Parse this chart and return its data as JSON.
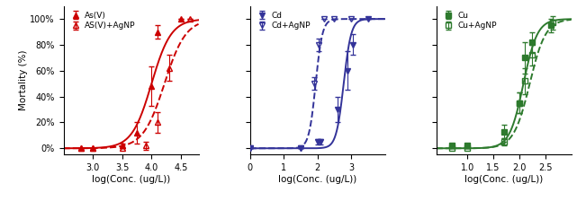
{
  "panel1": {
    "color": "#cc0000",
    "xlim": [
      2.5,
      4.8
    ],
    "xticks": [
      3.0,
      3.5,
      4.0,
      4.5
    ],
    "xlabel": "log(Conc. (ug/L))",
    "ylabel": "Mortality (%)",
    "legend1": "As(V)",
    "legend2": "AS(V)+AgNP",
    "solid_points_x": [
      2.8,
      3.0,
      3.5,
      3.75,
      4.0,
      4.1,
      4.5
    ],
    "solid_points_y": [
      0,
      0,
      2,
      12,
      48,
      90,
      100
    ],
    "solid_err": [
      0,
      0,
      2,
      8,
      15,
      5,
      0
    ],
    "dashed_points_x": [
      2.8,
      3.0,
      3.5,
      3.9,
      4.1,
      4.3,
      4.65
    ],
    "dashed_points_y": [
      0,
      0,
      0,
      2,
      20,
      62,
      100
    ],
    "dashed_err": [
      0,
      0,
      0,
      3,
      8,
      10,
      0
    ],
    "solid_lc50": 4.0,
    "solid_slope": 6.0,
    "dashed_lc50": 4.22,
    "dashed_slope": 5.5
  },
  "panel2": {
    "color": "#333399",
    "xlim": [
      0.0,
      4.0
    ],
    "xticks": [
      0,
      1,
      2,
      3
    ],
    "xlabel": "log(Conc. (ug/L))",
    "legend1": "Cd",
    "legend2": "Cd+AgNP",
    "solid_points_x": [
      0.0,
      1.5,
      2.0,
      2.1,
      2.6,
      2.9,
      3.05,
      3.5
    ],
    "solid_points_y": [
      0,
      0,
      5,
      5,
      30,
      60,
      80,
      100
    ],
    "solid_err": [
      0,
      0,
      2,
      2,
      10,
      15,
      8,
      0
    ],
    "dashed_points_x": [
      0.0,
      1.5,
      1.9,
      2.05,
      2.2,
      2.5,
      3.0
    ],
    "dashed_points_y": [
      0,
      0,
      50,
      80,
      100,
      100,
      100
    ],
    "dashed_err": [
      0,
      0,
      5,
      5,
      0,
      0,
      0
    ],
    "solid_lc50": 2.78,
    "solid_slope": 9.0,
    "dashed_lc50": 1.95,
    "dashed_slope": 10.0
  },
  "panel3": {
    "color": "#2d7a2d",
    "xlim": [
      0.4,
      3.0
    ],
    "xticks": [
      1.0,
      1.5,
      2.0,
      2.5
    ],
    "xlabel": "log(Conc. (ug/L))",
    "legend1": "Cu",
    "legend2": "Cu+AgNP",
    "solid_points_x": [
      0.7,
      1.0,
      1.7,
      2.0,
      2.1,
      2.25,
      2.6
    ],
    "solid_points_y": [
      2,
      2,
      13,
      35,
      70,
      82,
      95
    ],
    "solid_err": [
      2,
      2,
      5,
      8,
      12,
      8,
      5
    ],
    "dashed_points_x": [
      0.7,
      1.0,
      1.7,
      2.0,
      2.1,
      2.25,
      2.65
    ],
    "dashed_points_y": [
      0,
      0,
      5,
      35,
      52,
      72,
      97
    ],
    "dashed_err": [
      0,
      0,
      3,
      8,
      10,
      8,
      5
    ],
    "solid_lc50": 2.08,
    "solid_slope": 7.5,
    "dashed_lc50": 2.2,
    "dashed_slope": 6.5
  }
}
